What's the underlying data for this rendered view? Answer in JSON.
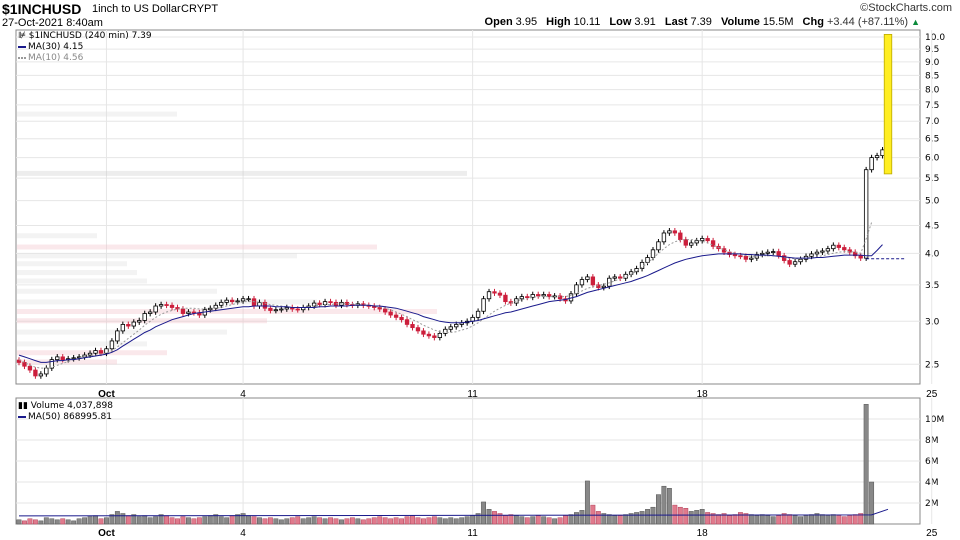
{
  "header": {
    "symbol": "$1INCHUSD",
    "name": "1inch to US Dollar",
    "exchange": "CRYPT",
    "date": "27-Oct-2021 8:40am",
    "brand": "©StockCharts.com",
    "open_label": "Open",
    "open": "3.95",
    "high_label": "High",
    "high": "10.11",
    "low_label": "Low",
    "low": "3.91",
    "last_label": "Last",
    "last": "7.39",
    "volume_label": "Volume",
    "volume": "15.5M",
    "chg_label": "Chg",
    "chg": "+3.44 (+87.11%)",
    "chg_arrow": "▲"
  },
  "legend": {
    "price": "$1INCHUSD (240 min) 7.39",
    "ma30": "MA(30) 4.15",
    "ma10": "MA(10) 4.56",
    "volume": "Volume 4,037,898",
    "vma50": "MA(50) 868995.81"
  },
  "colors": {
    "up": "#000000",
    "down": "#cc1f3c",
    "ma30": "#1a1a8c",
    "ma10": "#999999",
    "highlight": "#ffee22",
    "grid": "#e6e6e6"
  },
  "chart_data": [
    {
      "type": "candlestick",
      "title": "$1INCHUSD (240 min)",
      "scale": "log",
      "ylim": [
        2.3,
        10.3
      ],
      "yticks": [
        "10.0",
        "9.5",
        "9.0",
        "8.5",
        "8.0",
        "7.5",
        "7.0",
        "6.5",
        "6.0",
        "5.5",
        "5.0",
        "4.5",
        "4.0",
        "3.5",
        "3.0",
        "2.5"
      ],
      "x_labels": [
        "Oct",
        "4",
        "11",
        "18",
        "25"
      ],
      "x_label_bar_index": [
        16,
        41,
        83,
        125,
        167
      ],
      "close": [
        2.52,
        2.48,
        2.44,
        2.38,
        2.4,
        2.46,
        2.55,
        2.58,
        2.55,
        2.56,
        2.57,
        2.58,
        2.6,
        2.62,
        2.65,
        2.62,
        2.67,
        2.76,
        2.88,
        2.96,
        2.94,
        2.99,
        3.01,
        3.1,
        3.12,
        3.2,
        3.22,
        3.21,
        3.18,
        3.16,
        3.1,
        3.12,
        3.11,
        3.08,
        3.15,
        3.17,
        3.21,
        3.25,
        3.28,
        3.26,
        3.27,
        3.3,
        3.3,
        3.2,
        3.25,
        3.17,
        3.14,
        3.15,
        3.16,
        3.18,
        3.16,
        3.15,
        3.18,
        3.2,
        3.24,
        3.22,
        3.26,
        3.25,
        3.21,
        3.25,
        3.22,
        3.21,
        3.23,
        3.21,
        3.2,
        3.18,
        3.16,
        3.12,
        3.08,
        3.05,
        3.02,
        2.96,
        2.92,
        2.88,
        2.84,
        2.82,
        2.8,
        2.85,
        2.9,
        2.93,
        2.96,
        2.98,
        3.0,
        3.05,
        3.13,
        3.3,
        3.4,
        3.38,
        3.35,
        3.26,
        3.24,
        3.3,
        3.33,
        3.32,
        3.36,
        3.34,
        3.36,
        3.33,
        3.34,
        3.3,
        3.27,
        3.37,
        3.5,
        3.58,
        3.62,
        3.5,
        3.46,
        3.48,
        3.6,
        3.62,
        3.6,
        3.66,
        3.7,
        3.75,
        3.85,
        3.93,
        4.06,
        4.2,
        4.36,
        4.4,
        4.36,
        4.24,
        4.14,
        4.18,
        4.22,
        4.26,
        4.22,
        4.12,
        4.08,
        4.02,
        3.98,
        3.96,
        3.95,
        3.9,
        3.92,
        3.98,
        4.0,
        4.02,
        4.03,
        3.96,
        3.88,
        3.82,
        3.86,
        3.9,
        3.95,
        3.99,
        4.02,
        4.04,
        4.08,
        4.14,
        4.1,
        4.06,
        4.02,
        3.96,
        3.92,
        5.7,
        6.0,
        6.05,
        6.2,
        7.39
      ],
      "volume_M": [
        0.4,
        0.3,
        0.5,
        0.4,
        0.3,
        0.6,
        0.5,
        0.4,
        0.5,
        0.4,
        0.3,
        0.5,
        0.6,
        0.7,
        0.8,
        0.5,
        0.6,
        0.9,
        1.2,
        1.0,
        0.8,
        0.9,
        0.7,
        0.8,
        0.6,
        0.7,
        0.9,
        0.8,
        0.6,
        0.5,
        0.7,
        0.6,
        0.5,
        0.6,
        0.7,
        0.8,
        0.9,
        0.7,
        0.6,
        0.8,
        0.9,
        1.0,
        0.8,
        0.7,
        0.6,
        0.5,
        0.6,
        0.5,
        0.4,
        0.5,
        0.6,
        0.7,
        0.5,
        0.6,
        0.7,
        0.6,
        0.5,
        0.6,
        0.5,
        0.4,
        0.5,
        0.6,
        0.5,
        0.4,
        0.5,
        0.6,
        0.7,
        0.6,
        0.5,
        0.6,
        0.5,
        0.7,
        0.8,
        0.6,
        0.5,
        0.6,
        0.7,
        0.6,
        0.5,
        0.6,
        0.5,
        0.6,
        0.7,
        0.8,
        1.0,
        2.1,
        1.4,
        1.2,
        1.0,
        0.8,
        0.9,
        0.8,
        0.7,
        0.6,
        0.7,
        0.8,
        0.7,
        0.6,
        0.5,
        0.6,
        0.8,
        0.9,
        1.1,
        1.3,
        4.1,
        1.8,
        1.2,
        1.0,
        0.9,
        0.8,
        0.8,
        0.9,
        1.0,
        1.1,
        1.2,
        1.4,
        1.6,
        2.8,
        3.6,
        3.4,
        1.8,
        1.6,
        1.5,
        1.2,
        1.3,
        1.4,
        1.1,
        1.0,
        0.9,
        1.0,
        0.8,
        0.9,
        1.1,
        1.0,
        0.9,
        0.8,
        0.9,
        0.8,
        0.7,
        0.8,
        1.0,
        0.9,
        0.8,
        0.7,
        0.8,
        0.9,
        1.0,
        0.9,
        0.8,
        0.9,
        0.8,
        0.7,
        0.8,
        0.9,
        1.0,
        11.4,
        4.0
      ],
      "ma30": [
        2.6,
        2.58,
        2.56,
        2.54,
        2.52,
        2.52,
        2.53,
        2.54,
        2.54,
        2.55,
        2.55,
        2.56,
        2.57,
        2.58,
        2.59,
        2.6,
        2.61,
        2.63,
        2.66,
        2.7,
        2.74,
        2.78,
        2.82,
        2.86,
        2.89,
        2.93,
        2.96,
        2.99,
        3.02,
        3.04,
        3.06,
        3.08,
        3.1,
        3.11,
        3.12,
        3.13,
        3.14,
        3.15,
        3.16,
        3.17,
        3.18,
        3.19,
        3.19,
        3.2,
        3.2,
        3.2,
        3.2,
        3.19,
        3.19,
        3.19,
        3.18,
        3.18,
        3.18,
        3.18,
        3.18,
        3.19,
        3.19,
        3.2,
        3.2,
        3.2,
        3.2,
        3.21,
        3.21,
        3.21,
        3.21,
        3.2,
        3.2,
        3.19,
        3.18,
        3.17,
        3.15,
        3.13,
        3.11,
        3.09,
        3.06,
        3.04,
        3.02,
        3.0,
        2.99,
        2.98,
        2.98,
        2.98,
        2.99,
        3.0,
        3.01,
        3.03,
        3.05,
        3.07,
        3.09,
        3.11,
        3.12,
        3.14,
        3.16,
        3.18,
        3.2,
        3.22,
        3.24,
        3.26,
        3.27,
        3.28,
        3.29,
        3.31,
        3.33,
        3.36,
        3.39,
        3.41,
        3.43,
        3.45,
        3.47,
        3.49,
        3.51,
        3.53,
        3.55,
        3.58,
        3.61,
        3.64,
        3.68,
        3.72,
        3.76,
        3.8,
        3.84,
        3.87,
        3.9,
        3.92,
        3.94,
        3.96,
        3.97,
        3.98,
        3.99,
        3.99,
        3.99,
        3.99,
        3.99,
        3.98,
        3.98,
        3.97,
        3.97,
        3.97,
        3.96,
        3.95,
        3.94,
        3.93,
        3.92,
        3.92,
        3.92,
        3.92,
        3.93,
        3.93,
        3.94,
        3.95,
        3.96,
        3.97,
        3.97,
        3.97,
        3.97,
        3.96,
        3.96,
        4.05,
        4.15
      ],
      "ma10": [
        2.55,
        2.52,
        2.49,
        2.47,
        2.46,
        2.46,
        2.47,
        2.49,
        2.51,
        2.53,
        2.55,
        2.57,
        2.58,
        2.59,
        2.6,
        2.61,
        2.62,
        2.65,
        2.69,
        2.74,
        2.79,
        2.84,
        2.89,
        2.95,
        3.0,
        3.05,
        3.09,
        3.12,
        3.14,
        3.16,
        3.17,
        3.17,
        3.17,
        3.16,
        3.16,
        3.16,
        3.17,
        3.18,
        3.2,
        3.22,
        3.24,
        3.26,
        3.26,
        3.26,
        3.25,
        3.24,
        3.22,
        3.21,
        3.2,
        3.19,
        3.18,
        3.18,
        3.18,
        3.19,
        3.2,
        3.21,
        3.22,
        3.22,
        3.23,
        3.23,
        3.23,
        3.23,
        3.22,
        3.22,
        3.21,
        3.2,
        3.19,
        3.17,
        3.15,
        3.12,
        3.09,
        3.06,
        3.02,
        2.99,
        2.95,
        2.92,
        2.89,
        2.87,
        2.86,
        2.86,
        2.87,
        2.89,
        2.91,
        2.94,
        2.98,
        3.03,
        3.08,
        3.13,
        3.17,
        3.21,
        3.24,
        3.27,
        3.29,
        3.3,
        3.32,
        3.33,
        3.33,
        3.33,
        3.33,
        3.33,
        3.33,
        3.35,
        3.38,
        3.41,
        3.45,
        3.47,
        3.49,
        3.51,
        3.53,
        3.56,
        3.59,
        3.62,
        3.66,
        3.71,
        3.77,
        3.84,
        3.92,
        4.0,
        4.08,
        4.15,
        4.2,
        4.23,
        4.24,
        4.24,
        4.23,
        4.21,
        4.18,
        4.14,
        4.1,
        4.06,
        4.03,
        4.0,
        3.98,
        3.96,
        3.95,
        3.95,
        3.96,
        3.96,
        3.96,
        3.95,
        3.93,
        3.92,
        3.91,
        3.91,
        3.92,
        3.93,
        3.94,
        3.96,
        3.98,
        4.0,
        4.02,
        4.03,
        4.03,
        4.02,
        4.0,
        4.25,
        4.56
      ],
      "volume_ylim": [
        0,
        12
      ],
      "volume_yticks": [
        "10M",
        "8M",
        "6M",
        "4M",
        "2M"
      ],
      "vma50_M": 0.87,
      "last_close_line": 3.91
    }
  ]
}
